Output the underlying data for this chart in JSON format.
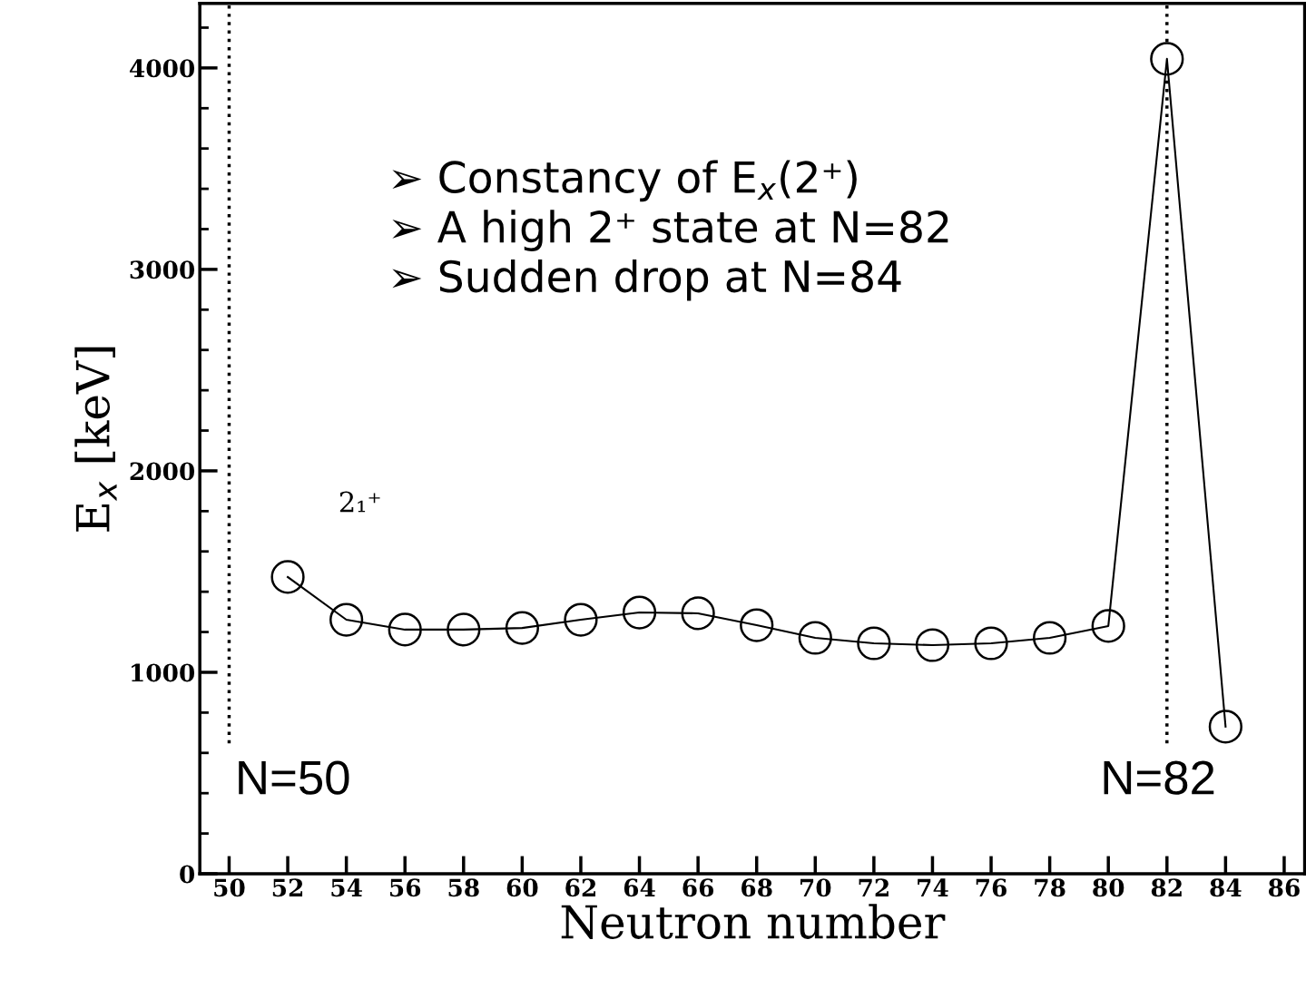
{
  "chart_data": {
    "type": "line",
    "xlabel": "Neutron number",
    "ylabel": "E$_{x}$ [keV]",
    "x": [
      52,
      54,
      56,
      58,
      60,
      62,
      64,
      66,
      68,
      70,
      72,
      74,
      76,
      78,
      80,
      82,
      84
    ],
    "series": [
      {
        "color": "#000000",
        "values": [
          1473,
          1261,
          1212,
          1212,
          1220,
          1261,
          1297,
          1293,
          1234,
          1171,
          1144,
          1135,
          1144,
          1171,
          1230,
          4045,
          730
        ]
      }
    ],
    "marker": "circle",
    "line_style": "solid",
    "grid": false,
    "legend": false,
    "xlim": [
      49,
      86.7
    ],
    "xticks": [
      50,
      52,
      54,
      56,
      58,
      60,
      62,
      64,
      66,
      68,
      70,
      72,
      74,
      76,
      78,
      80,
      82,
      84,
      86
    ],
    "ylim": [
      0,
      4320
    ],
    "yticks": [
      0,
      1000,
      2000,
      3000,
      4000
    ],
    "ref_lines": [
      {
        "axis": "x",
        "value": 50,
        "label": "N=50",
        "color": "#000000",
        "line_style": "dotted"
      },
      {
        "axis": "x",
        "value": 82,
        "label": "N=82",
        "color": "#000000",
        "line_style": "dotted"
      }
    ],
    "annotations": [
      "➢ Constancy of E$_{x}$(2⁺)\n➢ A high 2⁺ state at N=82\n➢ Sudden drop at N=84",
      "2₁⁺"
    ]
  }
}
